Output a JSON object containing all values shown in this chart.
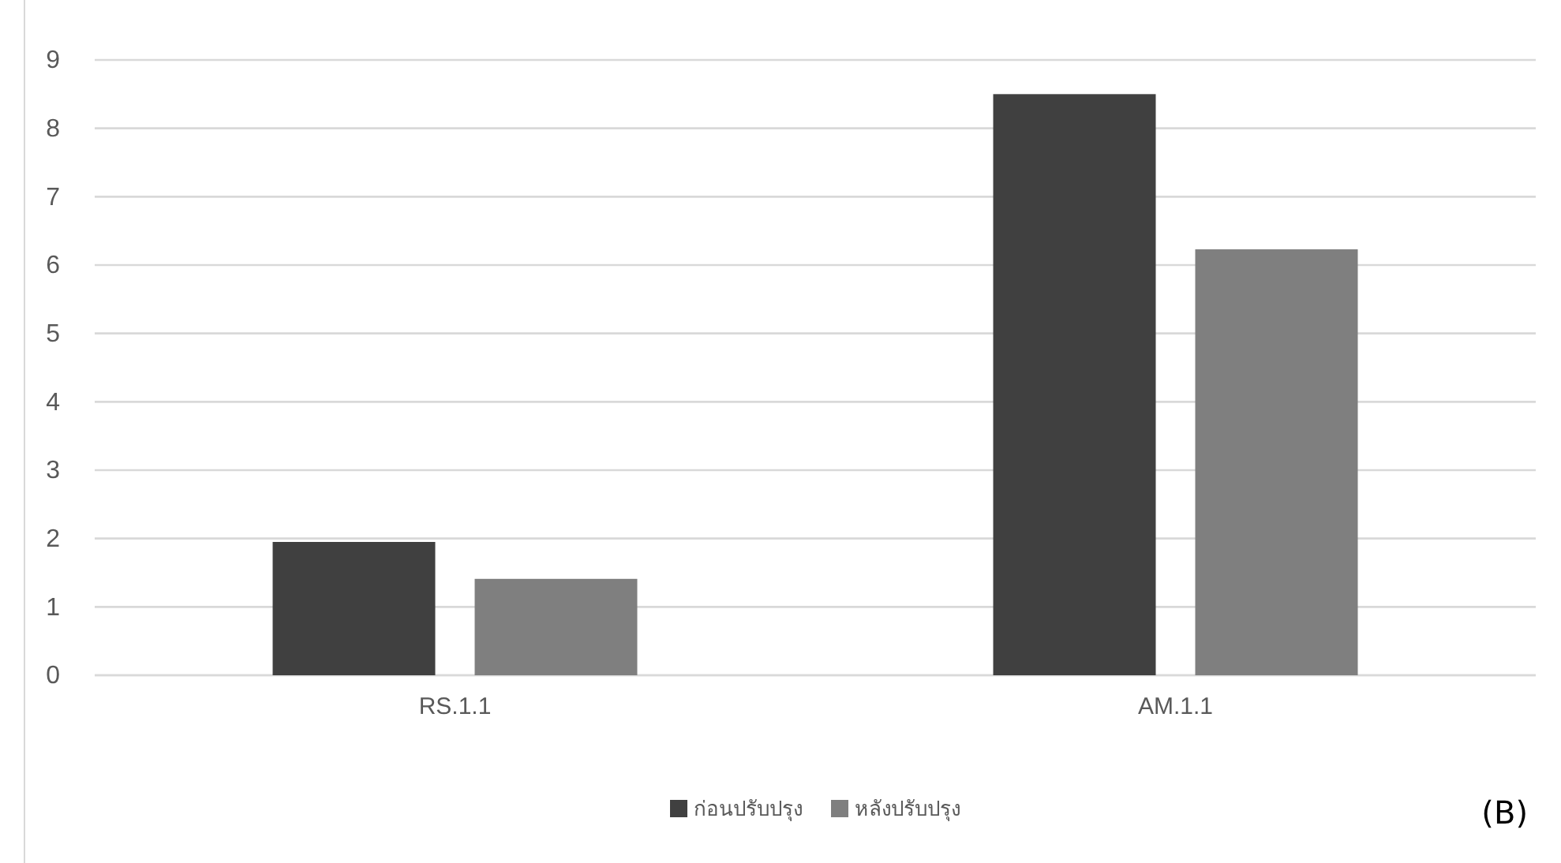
{
  "chart_data": {
    "type": "bar",
    "categories": [
      "RS.1.1",
      "AM.1.1"
    ],
    "series": [
      {
        "name": "ก่อนปรับปรุง",
        "color": "#404040",
        "values": [
          1.95,
          8.5
        ]
      },
      {
        "name": "หลังปรับปรุง",
        "color": "#7f7f7f",
        "values": [
          1.41,
          6.23
        ]
      }
    ],
    "ylim": [
      0,
      9
    ],
    "yticks": [
      0,
      1,
      2,
      3,
      4,
      5,
      6,
      7,
      8,
      9
    ],
    "grid": "y",
    "legend": "bottom",
    "annotations": [
      "(B)"
    ]
  }
}
